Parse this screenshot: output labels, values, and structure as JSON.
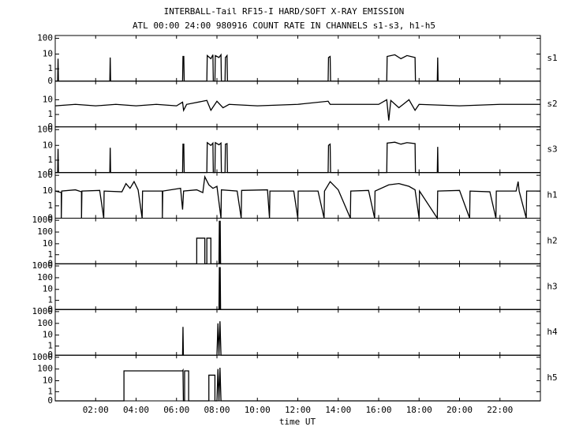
{
  "chart_data": {
    "type": "line",
    "title": "INTERBALL-Tail RF15-I HARD/SOFT X-RAY EMISSION",
    "subtitle": "ATL 00:00 24:00 980916  COUNT RATE IN CHANNELS s1-s3, h1-h5",
    "xlabel": "time UT",
    "log_y": true,
    "color": "#000000",
    "xlim": [
      0,
      24
    ],
    "xticks": [
      {
        "value": 2,
        "label": "02:00"
      },
      {
        "value": 4,
        "label": "04:00"
      },
      {
        "value": 6,
        "label": "06:00"
      },
      {
        "value": 8,
        "label": "08:00"
      },
      {
        "value": 10,
        "label": "10:00"
      },
      {
        "value": 12,
        "label": "12:00"
      },
      {
        "value": 14,
        "label": "14:00"
      },
      {
        "value": 16,
        "label": "16:00"
      },
      {
        "value": 18,
        "label": "18:00"
      },
      {
        "value": 20,
        "label": "20:00"
      },
      {
        "value": 22,
        "label": "22:00"
      }
    ],
    "panels": [
      {
        "name": "s1",
        "ylim": [
          0,
          150
        ],
        "yticks": [
          0,
          1,
          10,
          100
        ],
        "x": [
          0,
          0.12,
          0.14,
          0.16,
          2.7,
          2.72,
          2.74,
          6.3,
          6.32,
          6.36,
          6.38,
          7.5,
          7.52,
          7.7,
          7.8,
          7.82,
          7.9,
          7.92,
          8.1,
          8.2,
          8.22,
          8.4,
          8.42,
          8.5,
          8.52,
          13.5,
          13.52,
          13.6,
          13.62,
          16.4,
          16.42,
          16.8,
          17.1,
          17.4,
          17.8,
          17.82,
          18.9,
          18.92,
          18.94,
          24
        ],
        "values": [
          0,
          0,
          5,
          0,
          0,
          6,
          0,
          0,
          7,
          7,
          0,
          0,
          8,
          5,
          9,
          0,
          0,
          8,
          6,
          9,
          0,
          0,
          6,
          8,
          0,
          0,
          6,
          7,
          0,
          0,
          7,
          9,
          5,
          8,
          6,
          0,
          0,
          6,
          0,
          0
        ]
      },
      {
        "name": "s2",
        "ylim": [
          0,
          150
        ],
        "yticks": [
          0,
          1,
          10
        ],
        "x": [
          0,
          1,
          2,
          3,
          4,
          5,
          6,
          6.3,
          6.35,
          6.5,
          7.5,
          7.7,
          8,
          8.3,
          8.6,
          10,
          12,
          13.5,
          13.6,
          16,
          16.4,
          16.5,
          16.6,
          17,
          17.5,
          17.8,
          18,
          20,
          22,
          24
        ],
        "values": [
          4,
          5,
          4,
          5,
          4,
          5,
          4,
          7,
          2,
          5,
          9,
          2,
          8,
          3,
          5,
          4,
          5,
          8,
          5,
          5,
          10,
          0.3,
          9,
          3,
          10,
          2,
          5,
          4,
          5,
          5
        ]
      },
      {
        "name": "s3",
        "ylim": [
          0,
          150
        ],
        "yticks": [
          0,
          1,
          10,
          100
        ],
        "x": [
          0,
          0.12,
          0.14,
          0.16,
          2.7,
          2.72,
          2.74,
          6.3,
          6.32,
          6.36,
          6.38,
          7.5,
          7.52,
          7.7,
          7.8,
          7.82,
          7.9,
          7.92,
          8.1,
          8.2,
          8.22,
          8.4,
          8.42,
          8.5,
          8.52,
          13.5,
          13.52,
          13.6,
          13.62,
          16.4,
          16.42,
          16.8,
          17.1,
          17.4,
          17.8,
          17.82,
          18.9,
          18.92,
          18.94,
          24
        ],
        "values": [
          0,
          0,
          6,
          0,
          0,
          7,
          0,
          0,
          12,
          12,
          0,
          0,
          15,
          10,
          14,
          0,
          0,
          15,
          11,
          14,
          0,
          0,
          12,
          13,
          0,
          0,
          10,
          12,
          0,
          0,
          14,
          16,
          12,
          15,
          13,
          0,
          0,
          8,
          0,
          0
        ]
      },
      {
        "name": "h1",
        "ylim": [
          0,
          150
        ],
        "yticks": [
          0,
          1,
          10,
          100
        ],
        "x": [
          0,
          0.3,
          0.3,
          0.32,
          1,
          1.3,
          1.3,
          1.32,
          2.2,
          2.4,
          2.42,
          3.3,
          3.5,
          3.7,
          3.9,
          4.1,
          4.3,
          4.32,
          5.3,
          5.3,
          5.32,
          6.2,
          6.3,
          6.35,
          7.0,
          7.3,
          7.4,
          7.6,
          7.8,
          8.0,
          8.2,
          8.22,
          9.0,
          9.2,
          9.22,
          10.5,
          10.6,
          10.62,
          11.8,
          12,
          12.02,
          13.0,
          13.3,
          13.32,
          13.6,
          14,
          14.6,
          14.62,
          15.5,
          15.8,
          15.82,
          16.5,
          17,
          17.5,
          17.8,
          18,
          18.02,
          18.9,
          18.92,
          20,
          20.5,
          20.52,
          21.5,
          21.8,
          21.82,
          22.8,
          22.9,
          22.95,
          23.3,
          23.32,
          24
        ],
        "values": [
          10,
          8,
          0,
          10,
          12,
          9,
          0,
          10,
          11,
          0,
          10,
          9,
          30,
          15,
          40,
          12,
          0,
          10,
          10,
          0,
          10,
          15,
          0.5,
          10,
          12,
          8,
          80,
          25,
          15,
          20,
          0,
          12,
          10,
          0,
          11,
          12,
          0,
          10,
          10,
          0,
          10,
          10,
          0,
          10,
          40,
          12,
          0,
          10,
          11,
          0,
          10,
          25,
          30,
          20,
          12,
          0,
          10,
          0,
          10,
          11,
          0,
          10,
          9,
          0,
          10,
          10,
          40,
          10,
          0,
          10,
          10
        ]
      },
      {
        "name": "h2",
        "ylim": [
          0,
          1500
        ],
        "yticks": [
          0,
          1,
          10,
          100,
          1000
        ],
        "x": [
          0,
          7,
          7,
          7.4,
          7.4,
          7.5,
          7.5,
          7.7,
          7.7,
          8.1,
          8.12,
          8.14,
          8.16,
          8.18,
          24
        ],
        "values": [
          0,
          0,
          30,
          30,
          0,
          0,
          30,
          30,
          0,
          0,
          900,
          0,
          900,
          0,
          0
        ]
      },
      {
        "name": "h3",
        "ylim": [
          0,
          1500
        ],
        "yticks": [
          0,
          1,
          10,
          100,
          1000
        ],
        "x": [
          0,
          8.1,
          8.12,
          8.14,
          8.16,
          8.18,
          24
        ],
        "values": [
          0,
          0,
          800,
          0,
          800,
          0,
          0
        ]
      },
      {
        "name": "h4",
        "ylim": [
          0,
          1500
        ],
        "yticks": [
          0,
          1,
          10,
          100,
          1000
        ],
        "x": [
          0,
          6.3,
          6.32,
          6.34,
          8.0,
          8.05,
          8.1,
          8.15,
          8.2,
          24
        ],
        "values": [
          0,
          0,
          50,
          0,
          0,
          100,
          0,
          150,
          0,
          0
        ]
      },
      {
        "name": "h5",
        "ylim": [
          0,
          1500
        ],
        "yticks": [
          0,
          1,
          10,
          100,
          1000
        ],
        "x": [
          0,
          3.4,
          3.4,
          6.3,
          6.32,
          6.34,
          6.4,
          6.4,
          6.6,
          6.6,
          7.6,
          7.6,
          7.9,
          7.9,
          8.0,
          8.05,
          8.1,
          8.15,
          8.2,
          24
        ],
        "values": [
          0,
          0,
          70,
          70,
          80,
          0,
          0,
          70,
          70,
          0,
          0,
          30,
          30,
          0,
          0,
          100,
          0,
          130,
          0,
          0
        ]
      }
    ]
  }
}
